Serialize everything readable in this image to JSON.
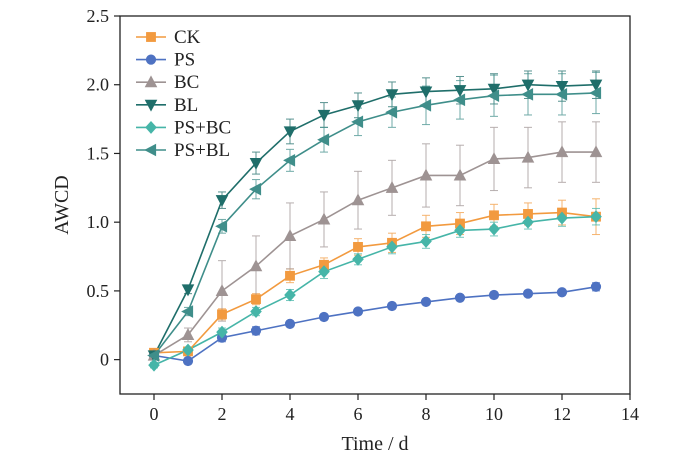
{
  "chart_data": {
    "type": "line",
    "title": "",
    "xlabel": "Time / d",
    "ylabel": "AWCD",
    "xlim": [
      -1,
      14
    ],
    "ylim": [
      -0.25,
      2.5
    ],
    "xticks": [
      0,
      2,
      4,
      6,
      8,
      10,
      12,
      14
    ],
    "yticks": [
      0,
      0.5,
      1.0,
      1.5,
      2.0,
      2.5
    ],
    "ytick_labels": [
      "0",
      "0.5",
      "1.0",
      "1.5",
      "2.0",
      "2.5"
    ],
    "grid": false,
    "legend_position": "top-left",
    "x": [
      0,
      1,
      2,
      3,
      4,
      5,
      6,
      7,
      8,
      9,
      10,
      11,
      12,
      13
    ],
    "series": [
      {
        "name": "CK",
        "color": "#F29A3F",
        "marker": "square",
        "values": [
          0.05,
          0.06,
          0.33,
          0.44,
          0.61,
          0.69,
          0.82,
          0.85,
          0.97,
          0.99,
          1.05,
          1.06,
          1.07,
          1.04
        ],
        "errors": [
          0.02,
          0.02,
          0.04,
          0.04,
          0.05,
          0.05,
          0.06,
          0.07,
          0.08,
          0.08,
          0.08,
          0.08,
          0.09,
          0.13
        ]
      },
      {
        "name": "PS",
        "color": "#4E72C2",
        "marker": "circle",
        "values": [
          0.03,
          -0.01,
          0.16,
          0.21,
          0.26,
          0.31,
          0.35,
          0.39,
          0.42,
          0.45,
          0.47,
          0.48,
          0.49,
          0.53
        ],
        "errors": [
          0.02,
          0.02,
          0.03,
          0.03,
          0.02,
          0.02,
          0.02,
          0.02,
          0.02,
          0.02,
          0.02,
          0.02,
          0.02,
          0.03
        ]
      },
      {
        "name": "BC",
        "color": "#9E9393",
        "marker": "triangle-up",
        "values": [
          0.03,
          0.18,
          0.5,
          0.68,
          0.9,
          1.02,
          1.16,
          1.25,
          1.34,
          1.34,
          1.46,
          1.47,
          1.51,
          1.51
        ],
        "errors": [
          0.02,
          0.05,
          0.22,
          0.22,
          0.24,
          0.2,
          0.21,
          0.2,
          0.23,
          0.22,
          0.23,
          0.22,
          0.22,
          0.22
        ]
      },
      {
        "name": "BL",
        "color": "#1F6E6A",
        "marker": "triangle-down",
        "values": [
          0.03,
          0.51,
          1.16,
          1.43,
          1.66,
          1.78,
          1.85,
          1.93,
          1.95,
          1.96,
          1.97,
          2.0,
          1.99,
          2.0
        ],
        "errors": [
          0.02,
          0.03,
          0.06,
          0.08,
          0.09,
          0.09,
          0.09,
          0.09,
          0.1,
          0.1,
          0.11,
          0.1,
          0.11,
          0.1
        ]
      },
      {
        "name": "PS+BC",
        "color": "#46B5A8",
        "marker": "diamond",
        "values": [
          -0.04,
          0.07,
          0.2,
          0.35,
          0.47,
          0.64,
          0.73,
          0.82,
          0.86,
          0.94,
          0.95,
          1.0,
          1.03,
          1.04
        ],
        "errors": [
          0.02,
          0.02,
          0.03,
          0.03,
          0.04,
          0.05,
          0.04,
          0.05,
          0.05,
          0.05,
          0.05,
          0.05,
          0.06,
          0.06
        ]
      },
      {
        "name": "PS+BL",
        "color": "#3F8E8A",
        "marker": "triangle-left",
        "values": [
          0.03,
          0.35,
          0.97,
          1.24,
          1.45,
          1.6,
          1.73,
          1.8,
          1.85,
          1.89,
          1.92,
          1.93,
          1.93,
          1.94
        ],
        "errors": [
          0.02,
          0.03,
          0.05,
          0.07,
          0.08,
          0.09,
          0.1,
          0.11,
          0.14,
          0.14,
          0.15,
          0.15,
          0.15,
          0.15
        ]
      }
    ]
  }
}
